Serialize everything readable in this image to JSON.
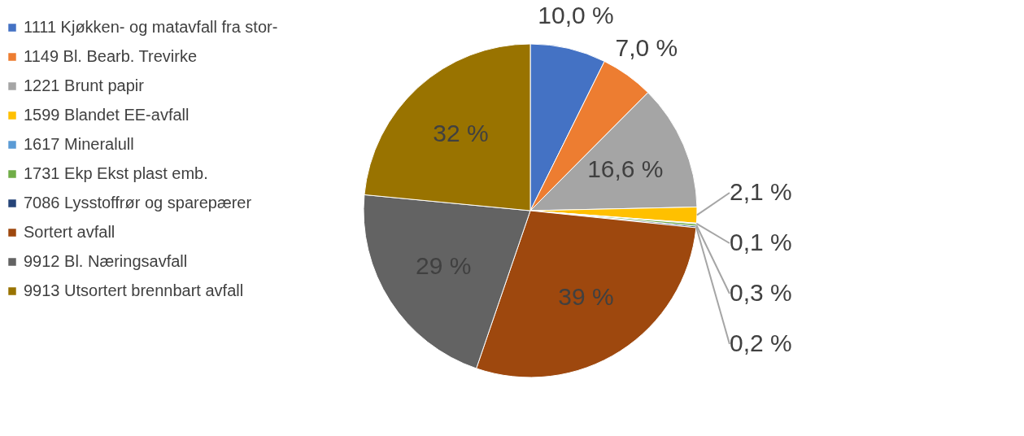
{
  "chart_data": {
    "type": "pie",
    "categories": [
      "1111 Kjøkken- og matavfall fra stor-",
      "1149 Bl. Bearb. Trevirke",
      "1221 Brunt papir",
      "1599 Blandet EE-avfall",
      "1617 Mineralull",
      "1731 Ekp Ekst plast emb.",
      "7086 Lysstoffrør og sparepærer",
      "Sortert avfall",
      "9912 Bl. Næringsavfall",
      "9913 Utsortert brennbart avfall"
    ],
    "values": [
      10.0,
      7.0,
      16.6,
      2.1,
      0.1,
      0.3,
      0.2,
      39,
      29,
      32
    ],
    "value_labels": [
      "10,0 %",
      "7,0 %",
      "16,6 %",
      "2,1 %",
      "0,1 %",
      "0,3 %",
      "0,2 %",
      "39 %",
      "29 %",
      "32 %"
    ],
    "colors": [
      "#4472c4",
      "#ed7d31",
      "#a5a5a5",
      "#ffc000",
      "#5b9bd5",
      "#70ad47",
      "#264478",
      "#9e480e",
      "#636363",
      "#997300"
    ],
    "legend": "left"
  }
}
